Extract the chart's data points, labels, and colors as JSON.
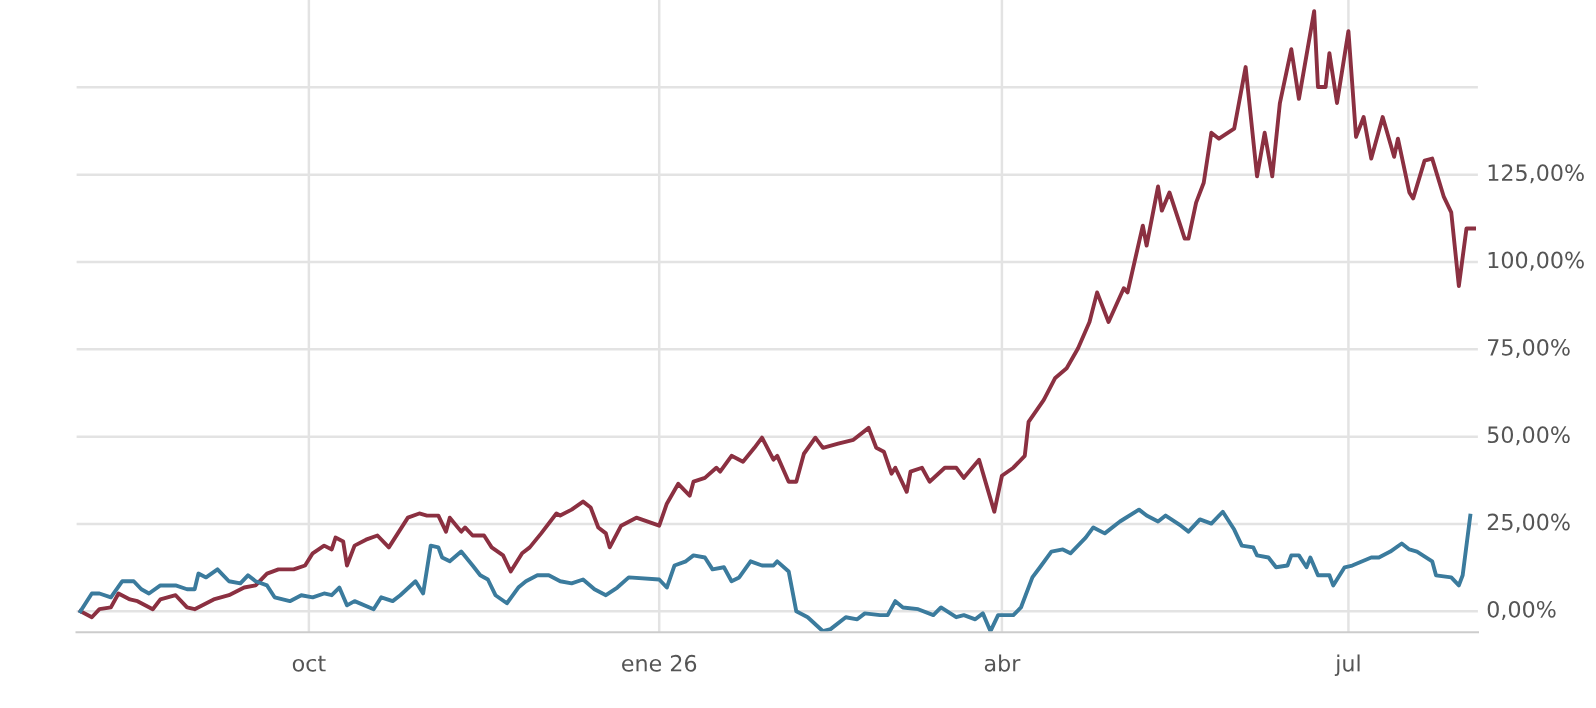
{
  "chart_data": {
    "type": "line",
    "grid": true,
    "xlim": [
      "2025-08-01",
      "2026-08-04"
    ],
    "xticks": [
      {
        "value": "2025-10-01",
        "label": "oct"
      },
      {
        "value": "2026-01-01",
        "label": "ene 26"
      },
      {
        "value": "2026-04-01",
        "label": "abr"
      },
      {
        "value": "2026-07-01",
        "label": "jul"
      }
    ],
    "ylim": [
      -6,
      175
    ],
    "yticks": [
      {
        "value": 0,
        "label": "0,00%"
      },
      {
        "value": 25,
        "label": "25,00%"
      },
      {
        "value": 50,
        "label": "50,00%"
      },
      {
        "value": 75,
        "label": "75,00%"
      },
      {
        "value": 100,
        "label": "100,00%"
      },
      {
        "value": 125,
        "label": "125,00%"
      },
      {
        "value": 150,
        "label": null
      }
    ],
    "series": [
      {
        "color": "#8b3041",
        "x": [
          "2025-08-02",
          "2025-08-05",
          "2025-08-07",
          "2025-08-10",
          "2025-08-12",
          "2025-08-15",
          "2025-08-17",
          "2025-08-21",
          "2025-08-23",
          "2025-08-27",
          "2025-08-30",
          "2025-09-01",
          "2025-09-06",
          "2025-09-10",
          "2025-09-14",
          "2025-09-17",
          "2025-09-20",
          "2025-09-23",
          "2025-09-27",
          "2025-09-30",
          "2025-10-02",
          "2025-10-05",
          "2025-10-07",
          "2025-10-08",
          "2025-10-10",
          "2025-10-11",
          "2025-10-13",
          "2025-10-16",
          "2025-10-19",
          "2025-10-22",
          "2025-10-27",
          "2025-10-30",
          "2025-11-01",
          "2025-11-04",
          "2025-11-06",
          "2025-11-07",
          "2025-11-10",
          "2025-11-11",
          "2025-11-13",
          "2025-11-16",
          "2025-11-18",
          "2025-11-21",
          "2025-11-23",
          "2025-11-26",
          "2025-11-28",
          "2025-12-01",
          "2025-12-05",
          "2025-12-06",
          "2025-12-09",
          "2025-12-12",
          "2025-12-14",
          "2025-12-16",
          "2025-12-18",
          "2025-12-19",
          "2025-12-22",
          "2025-12-26",
          "2026-01-01",
          "2026-01-03",
          "2026-01-06",
          "2026-01-09",
          "2026-01-10",
          "2026-01-13",
          "2026-01-16",
          "2026-01-17",
          "2026-01-20",
          "2026-01-23",
          "2026-01-26",
          "2026-01-28",
          "2026-01-31",
          "2026-02-01",
          "2026-02-04",
          "2026-02-06",
          "2026-02-08",
          "2026-02-11",
          "2026-02-13",
          "2026-02-17",
          "2026-02-21",
          "2026-02-25",
          "2026-02-27",
          "2026-03-01",
          "2026-03-03",
          "2026-03-04",
          "2026-03-07",
          "2026-03-08",
          "2026-03-11",
          "2026-03-13",
          "2026-03-17",
          "2026-03-20",
          "2026-03-22",
          "2026-03-26",
          "2026-03-28",
          "2026-03-30",
          "2026-04-01",
          "2026-04-04",
          "2026-04-07",
          "2026-04-08",
          "2026-04-12",
          "2026-04-15",
          "2026-04-18",
          "2026-04-21",
          "2026-04-24",
          "2026-04-26",
          "2026-04-29",
          "2026-05-03",
          "2026-05-04",
          "2026-05-08",
          "2026-05-09",
          "2026-05-12",
          "2026-05-13",
          "2026-05-15",
          "2026-05-19",
          "2026-05-20",
          "2026-05-22",
          "2026-05-24",
          "2026-05-26",
          "2026-05-28",
          "2026-06-01",
          "2026-06-04",
          "2026-06-07",
          "2026-06-09",
          "2026-06-11",
          "2026-06-13",
          "2026-06-16",
          "2026-06-18",
          "2026-06-22",
          "2026-06-23",
          "2026-06-25",
          "2026-06-26",
          "2026-06-28",
          "2026-07-01",
          "2026-07-03",
          "2026-07-05",
          "2026-07-07",
          "2026-07-10",
          "2026-07-13",
          "2026-07-14",
          "2026-07-17",
          "2026-07-18",
          "2026-07-21",
          "2026-07-23",
          "2026-07-26",
          "2026-07-28",
          "2026-07-30",
          "2026-08-01",
          "2026-08-03"
        ],
        "values": [
          0,
          -1.7,
          0.6,
          1.1,
          5.1,
          3.4,
          2.9,
          0.6,
          3.4,
          4.6,
          1.1,
          0.6,
          3.4,
          4.6,
          6.8,
          7.4,
          10.8,
          12,
          12,
          13.1,
          16.6,
          18.8,
          17.7,
          21.1,
          20,
          13.1,
          18.8,
          20.5,
          21.7,
          18.3,
          26.8,
          28,
          27.4,
          27.4,
          22.8,
          26.8,
          22.8,
          24,
          21.7,
          21.7,
          18.3,
          16,
          11.4,
          16.6,
          18.3,
          22.3,
          28,
          27.4,
          29.1,
          31.4,
          29.7,
          24,
          22.3,
          18.3,
          24.5,
          26.8,
          24.5,
          30.8,
          36.5,
          33.1,
          37.1,
          38.2,
          41.1,
          40,
          44.5,
          42.8,
          46.8,
          49.7,
          43.4,
          44.5,
          37.1,
          37.1,
          45.1,
          49.7,
          46.8,
          48,
          49.1,
          52.5,
          46.8,
          45.7,
          39.4,
          41.1,
          34.2,
          40,
          41.1,
          37.1,
          41.1,
          41.1,
          38.2,
          43.4,
          35.9,
          28.5,
          38.8,
          41.1,
          44.5,
          54.2,
          60.5,
          66.8,
          69.6,
          75.3,
          82.8,
          91.3,
          82.8,
          92.5,
          91.3,
          110.4,
          104.7,
          121.6,
          114.7,
          119.9,
          106.7,
          106.7,
          117,
          122.7,
          137,
          135.3,
          138.2,
          155.8,
          124.5,
          137,
          124.5,
          145.5,
          160.9,
          146.7,
          171.8,
          150.1,
          150.1,
          159.8,
          145.5,
          166.1,
          135.8,
          141.5,
          129.6,
          141.5,
          130.1,
          135.3,
          119.9,
          118.2,
          129,
          129.6,
          118.8,
          114.2,
          93.1,
          109.6,
          109.6
        ]
      },
      {
        "color": "#3b7b9d",
        "x": [
          "2025-08-02",
          "2025-08-05",
          "2025-08-07",
          "2025-08-10",
          "2025-08-13",
          "2025-08-16",
          "2025-08-18",
          "2025-08-20",
          "2025-08-23",
          "2025-08-27",
          "2025-08-30",
          "2025-09-01",
          "2025-09-02",
          "2025-09-04",
          "2025-09-07",
          "2025-09-10",
          "2025-09-13",
          "2025-09-15",
          "2025-09-17",
          "2025-09-20",
          "2025-09-22",
          "2025-09-26",
          "2025-09-29",
          "2025-10-02",
          "2025-10-05",
          "2025-10-07",
          "2025-10-09",
          "2025-10-11",
          "2025-10-13",
          "2025-10-18",
          "2025-10-20",
          "2025-10-23",
          "2025-10-25",
          "2025-10-29",
          "2025-10-31",
          "2025-11-02",
          "2025-11-04",
          "2025-11-05",
          "2025-11-07",
          "2025-11-10",
          "2025-11-13",
          "2025-11-15",
          "2025-11-17",
          "2025-11-19",
          "2025-11-22",
          "2025-11-25",
          "2025-11-27",
          "2025-11-30",
          "2025-12-03",
          "2025-12-06",
          "2025-12-09",
          "2025-12-12",
          "2025-12-15",
          "2025-12-18",
          "2025-12-21",
          "2025-12-24",
          "2026-01-01",
          "2026-01-03",
          "2026-01-05",
          "2026-01-08",
          "2026-01-10",
          "2026-01-13",
          "2026-01-15",
          "2026-01-18",
          "2026-01-20",
          "2026-01-22",
          "2026-01-25",
          "2026-01-28",
          "2026-01-31",
          "2026-02-01",
          "2026-02-04",
          "2026-02-06",
          "2026-02-09",
          "2026-02-13",
          "2026-02-15",
          "2026-02-19",
          "2026-02-22",
          "2026-02-24",
          "2026-02-28",
          "2026-03-02",
          "2026-03-04",
          "2026-03-06",
          "2026-03-10",
          "2026-03-14",
          "2026-03-16",
          "2026-03-20",
          "2026-03-22",
          "2026-03-25",
          "2026-03-27",
          "2026-03-29",
          "2026-03-31",
          "2026-04-04",
          "2026-04-06",
          "2026-04-09",
          "2026-04-11",
          "2026-04-14",
          "2026-04-17",
          "2026-04-19",
          "2026-04-23",
          "2026-04-25",
          "2026-04-28",
          "2026-05-02",
          "2026-05-07",
          "2026-05-09",
          "2026-05-12",
          "2026-05-14",
          "2026-05-18",
          "2026-05-20",
          "2026-05-23",
          "2026-05-26",
          "2026-05-29",
          "2026-06-01",
          "2026-06-03",
          "2026-06-06",
          "2026-06-07",
          "2026-06-10",
          "2026-06-12",
          "2026-06-15",
          "2026-06-16",
          "2026-06-18",
          "2026-06-20",
          "2026-06-21",
          "2026-06-23",
          "2026-06-26",
          "2026-06-27",
          "2026-06-30",
          "2026-07-02",
          "2026-07-07",
          "2026-07-09",
          "2026-07-12",
          "2026-07-15",
          "2026-07-17",
          "2026-07-19",
          "2026-07-23",
          "2026-07-24",
          "2026-07-28",
          "2026-07-30",
          "2026-07-31",
          "2026-08-02"
        ],
        "values": [
          0,
          5.1,
          5.1,
          4,
          8.6,
          8.6,
          6.3,
          5.1,
          7.4,
          7.4,
          6.3,
          6.3,
          10.8,
          9.7,
          12,
          8.6,
          8,
          10.3,
          8.6,
          7.4,
          4,
          2.9,
          4.6,
          4,
          5.1,
          4.6,
          6.8,
          1.7,
          2.9,
          0.6,
          4,
          2.9,
          4.6,
          8.6,
          5.1,
          18.8,
          18.3,
          15.4,
          14.3,
          17.1,
          13.1,
          10.3,
          9.1,
          4.6,
          2.3,
          6.8,
          8.6,
          10.3,
          10.3,
          8.6,
          8,
          9.1,
          6.3,
          4.6,
          6.8,
          9.7,
          9.1,
          6.8,
          13.1,
          14.3,
          16,
          15.4,
          12,
          12.6,
          8.6,
          9.7,
          14.3,
          13.1,
          13.1,
          14.3,
          11.4,
          0,
          -1.7,
          -5.7,
          -5.1,
          -1.7,
          -2.3,
          -0.6,
          -1.1,
          -1.1,
          2.9,
          1.1,
          0.6,
          -1.1,
          1.1,
          -1.7,
          -1.1,
          -2.3,
          -0.6,
          -5.7,
          -1.1,
          -1.1,
          1.1,
          9.7,
          12.6,
          17.1,
          17.7,
          16.6,
          21.1,
          24,
          22.3,
          25.7,
          29.1,
          27.4,
          25.7,
          27.4,
          24.5,
          22.8,
          26.3,
          25.1,
          28.5,
          23.4,
          18.8,
          18.3,
          16,
          15.4,
          12.6,
          13.1,
          16,
          16,
          12.6,
          15.4,
          10.3,
          10.3,
          7.4,
          12.6,
          13.1,
          15.4,
          15.4,
          17.1,
          19.4,
          17.7,
          17.1,
          14.3,
          10.3,
          9.7,
          7.4,
          10.3,
          27.4
        ]
      }
    ]
  }
}
